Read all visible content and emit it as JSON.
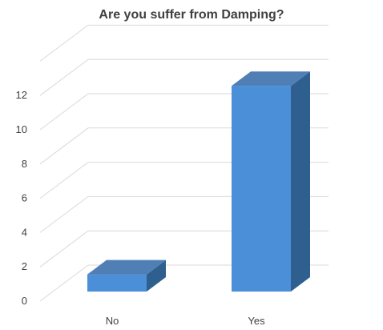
{
  "chart_data": {
    "type": "bar",
    "title": "Are you suffer from Damping?",
    "categories": [
      "No",
      "Yes"
    ],
    "values": [
      1,
      12
    ],
    "xlabel": "",
    "ylabel": "",
    "ylim": [
      0,
      14
    ],
    "yticks": [
      0,
      2,
      4,
      6,
      8,
      10,
      12
    ],
    "grid": true,
    "legend": "none",
    "bar_color": "#4A8FD8",
    "bar_side_color": "#2F5F8F",
    "bar_top_color": "#4F7FB5",
    "style": "3d-column"
  }
}
